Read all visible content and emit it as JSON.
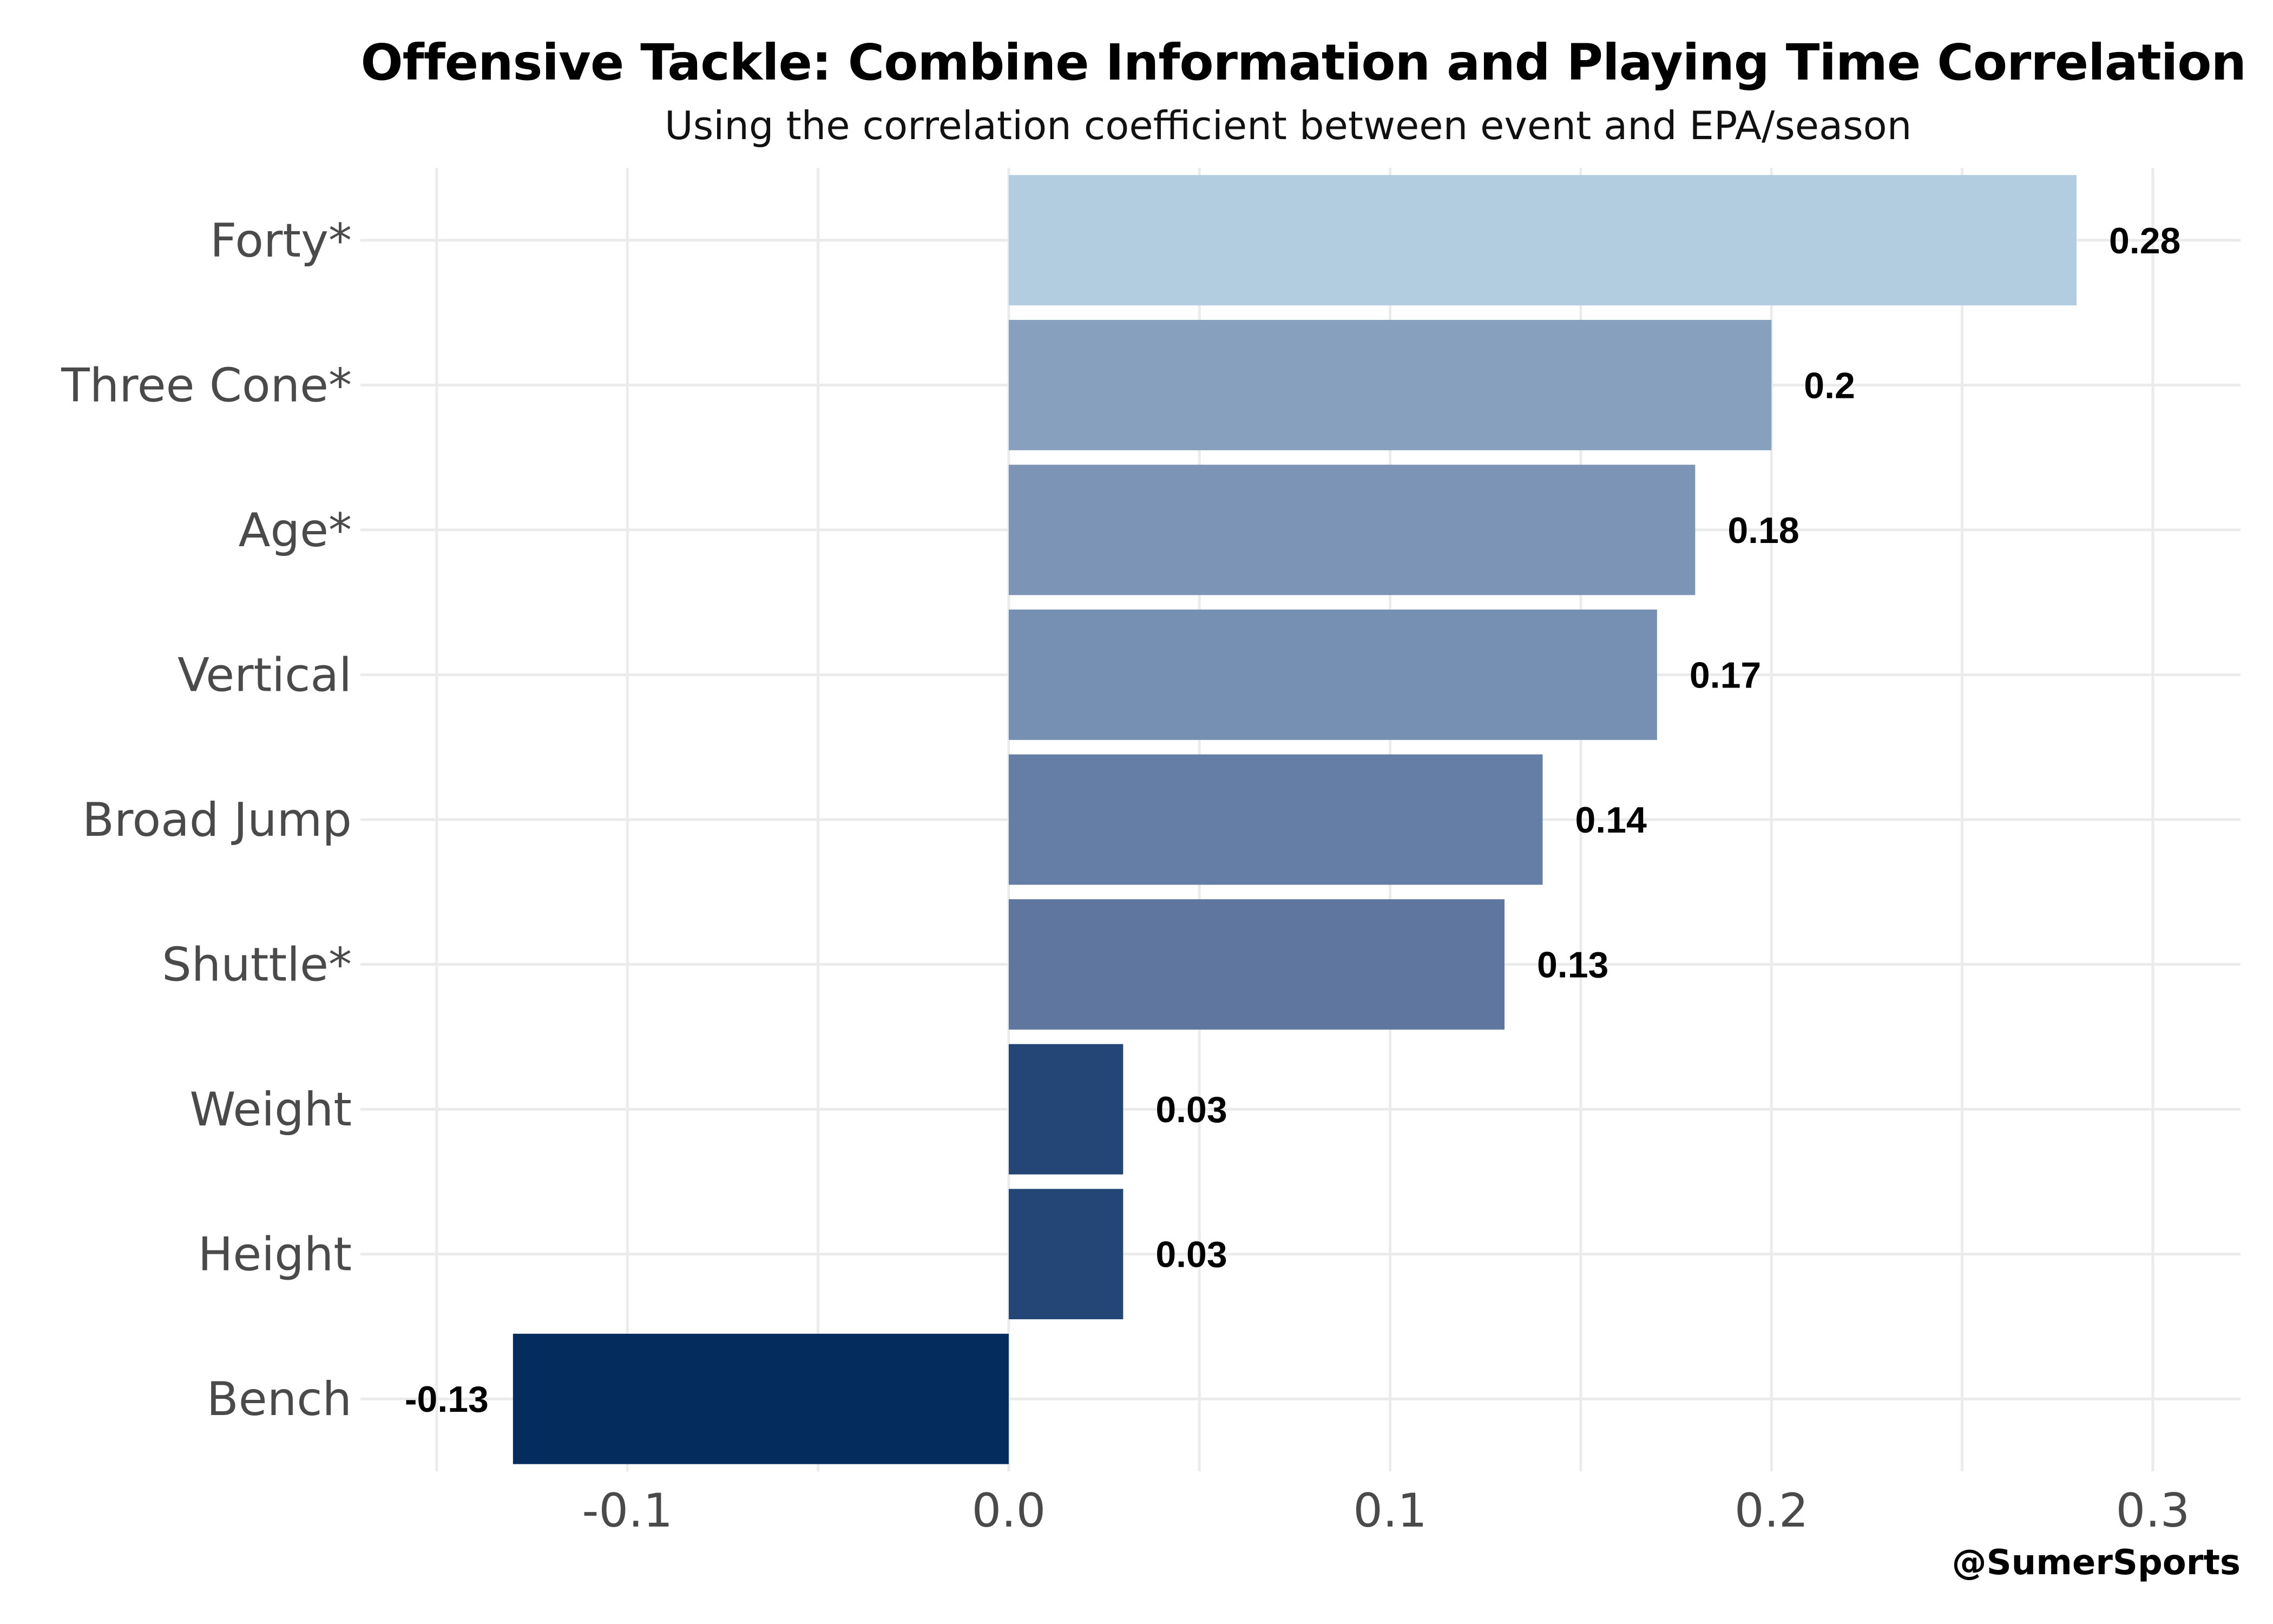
{
  "chart_data": {
    "type": "bar",
    "orientation": "horizontal",
    "title": "Offensive Tackle: Combine Information and Playing Time Correlation",
    "subtitle": "Using the correlation coefficient between event and EPA/season",
    "caption": "@SumerSports",
    "categories": [
      "Forty*",
      "Three Cone*",
      "Age*",
      "Vertical",
      "Broad Jump",
      "Shuttle*",
      "Weight",
      "Height",
      "Bench"
    ],
    "values": [
      0.28,
      0.2,
      0.18,
      0.17,
      0.14,
      0.13,
      0.03,
      0.03,
      -0.13
    ],
    "value_labels": [
      "0.28",
      "0.2",
      "0.18",
      "0.17",
      "0.14",
      "0.13",
      "0.03",
      "0.03",
      "-0.13"
    ],
    "bar_colors": [
      "#b3cde0",
      "#87a0bd",
      "#7c94b5",
      "#7590b2",
      "#647ea5",
      "#5f779f",
      "#244676",
      "#244676",
      "#042c5c"
    ],
    "xlim": [
      -0.17,
      0.323
    ],
    "x_ticks": [
      -0.1,
      0.0,
      0.1,
      0.2,
      0.3
    ],
    "x_tick_labels": [
      "-0.1",
      "0.0",
      "0.1",
      "0.2",
      "0.3"
    ],
    "xlabel": "",
    "ylabel": "",
    "grid": true,
    "legend": "none"
  }
}
